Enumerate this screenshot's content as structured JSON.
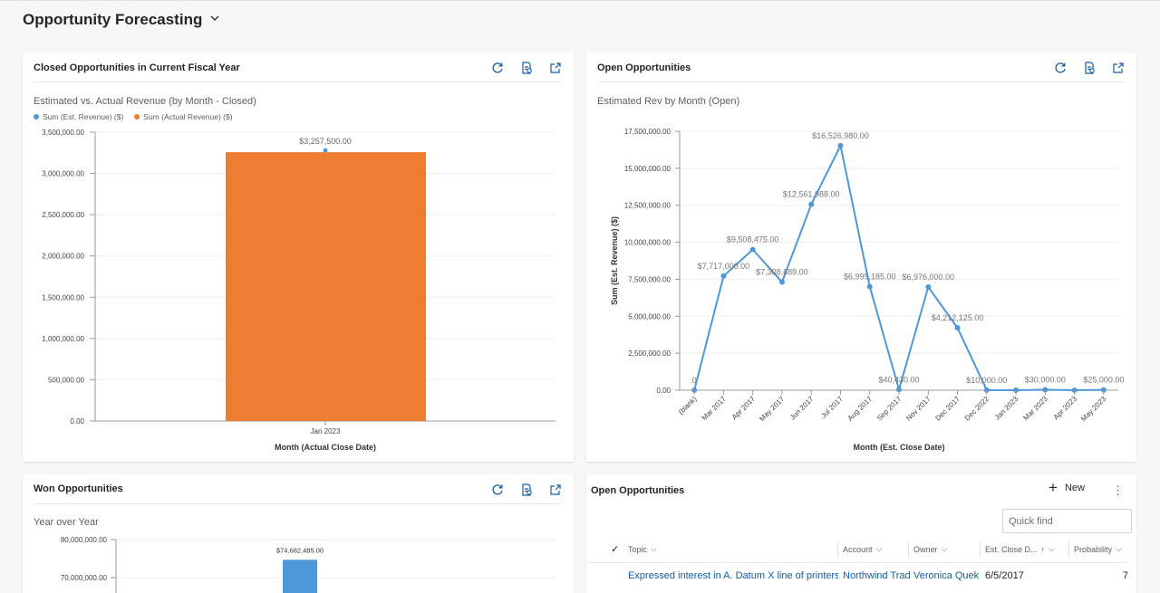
{
  "page": {
    "title": "Opportunity Forecasting"
  },
  "cards": {
    "closed": {
      "title": "Closed Opportunities in Current Fiscal Year",
      "subtitle": "Estimated vs. Actual Revenue (by Month - Closed)",
      "legend": [
        {
          "label": "Sum (Est. Revenue) ($)",
          "color": "#4e97d8"
        },
        {
          "label": "Sum (Actual Revenue) ($)",
          "color": "#ed7d31"
        }
      ]
    },
    "open": {
      "title": "Open Opportunities",
      "subtitle": "Estimated Rev by Month (Open)"
    },
    "won": {
      "title": "Won Opportunities",
      "subtitle": "Year over Year"
    },
    "grid": {
      "title": "Open Opportunities",
      "new_label": "New",
      "more_label": "⋮",
      "quick_find_placeholder": "Quick find",
      "columns": [
        "Topic",
        "Account",
        "Owner",
        "Est. Close D...",
        "Probability"
      ],
      "rows": [
        {
          "topic": "Expressed interest in A. Datum X line of printers",
          "account": "Northwind Traders",
          "owner": "Veronica Quek",
          "close_date": "6/5/2017",
          "probability": "7"
        }
      ]
    }
  },
  "chart_data": [
    {
      "type": "bar",
      "title": "Estimated vs. Actual Revenue (by Month - Closed)",
      "xlabel": "Month (Actual Close Date)",
      "ylabel": "",
      "categories": [
        "Jan 2023"
      ],
      "series": [
        {
          "name": "Sum (Est. Revenue) ($)",
          "type": "point",
          "values": [
            3257500
          ],
          "labels": [
            "$3,257,500.00"
          ]
        },
        {
          "name": "Sum (Actual Revenue) ($)",
          "type": "bar",
          "values": [
            3257500
          ]
        }
      ],
      "ylim": [
        0,
        3500000
      ],
      "yticks": [
        "0.00",
        "500,000.00",
        "1,000,000.00",
        "1,500,000.00",
        "2,000,000.00",
        "2,500,000.00",
        "3,000,000.00",
        "3,500,000.00"
      ],
      "colors": {
        "point": "#4e97d8",
        "bar": "#ed7d31"
      },
      "legend": "top-left"
    },
    {
      "type": "line",
      "title": "Estimated Rev by Month (Open)",
      "xlabel": "Month (Est. Close Date)",
      "ylabel": "Sum (Est. Revenue) ($)",
      "categories": [
        "(blank)",
        "Mar 2017",
        "Apr 2017",
        "May 2017",
        "Jun 2017",
        "Jul 2017",
        "Aug 2017",
        "Sep 2017",
        "Nov 2017",
        "Dec 2017",
        "Dec 2022",
        "Jan 2023",
        "Mar 2023",
        "Apr 2023",
        "May 2023"
      ],
      "series": [
        {
          "name": "Sum (Est. Revenue) ($)",
          "values": [
            0,
            7717000,
            9508475,
            7308889,
            12561988,
            16526980,
            6999185,
            40430,
            6976000,
            4212125,
            10000,
            0,
            30000,
            0,
            25000
          ],
          "labels": [
            "0",
            "$7,717,000.00",
            "$9,508,475.00",
            "$7,308,889.00",
            "$12,561,988.00",
            "$16,526,980.00",
            "$6,999,185.00",
            "$40,430.00",
            "$6,976,000.00",
            "$4,212,125.00",
            "$10,000.00",
            "",
            "$30,000.00",
            "",
            "$25,000.00"
          ]
        }
      ],
      "ylim": [
        0,
        17500000
      ],
      "yticks": [
        "0.00",
        "2,500,000.00",
        "5,000,000.00",
        "7,500,000.00",
        "10,000,000.00",
        "12,500,000.00",
        "15,000,000.00",
        "17,500,000.00"
      ],
      "color": "#4e97d8"
    },
    {
      "type": "bar",
      "title": "Year over Year",
      "categories": [
        ""
      ],
      "series": [
        {
          "name": "",
          "values": [
            74682485
          ],
          "labels": [
            "$74,682,485.00"
          ]
        }
      ],
      "ylim": [
        0,
        80000000
      ],
      "yticks_visible": [
        "80,000,000.00",
        "70,000,000.00"
      ],
      "color": "#4e97d8"
    }
  ]
}
